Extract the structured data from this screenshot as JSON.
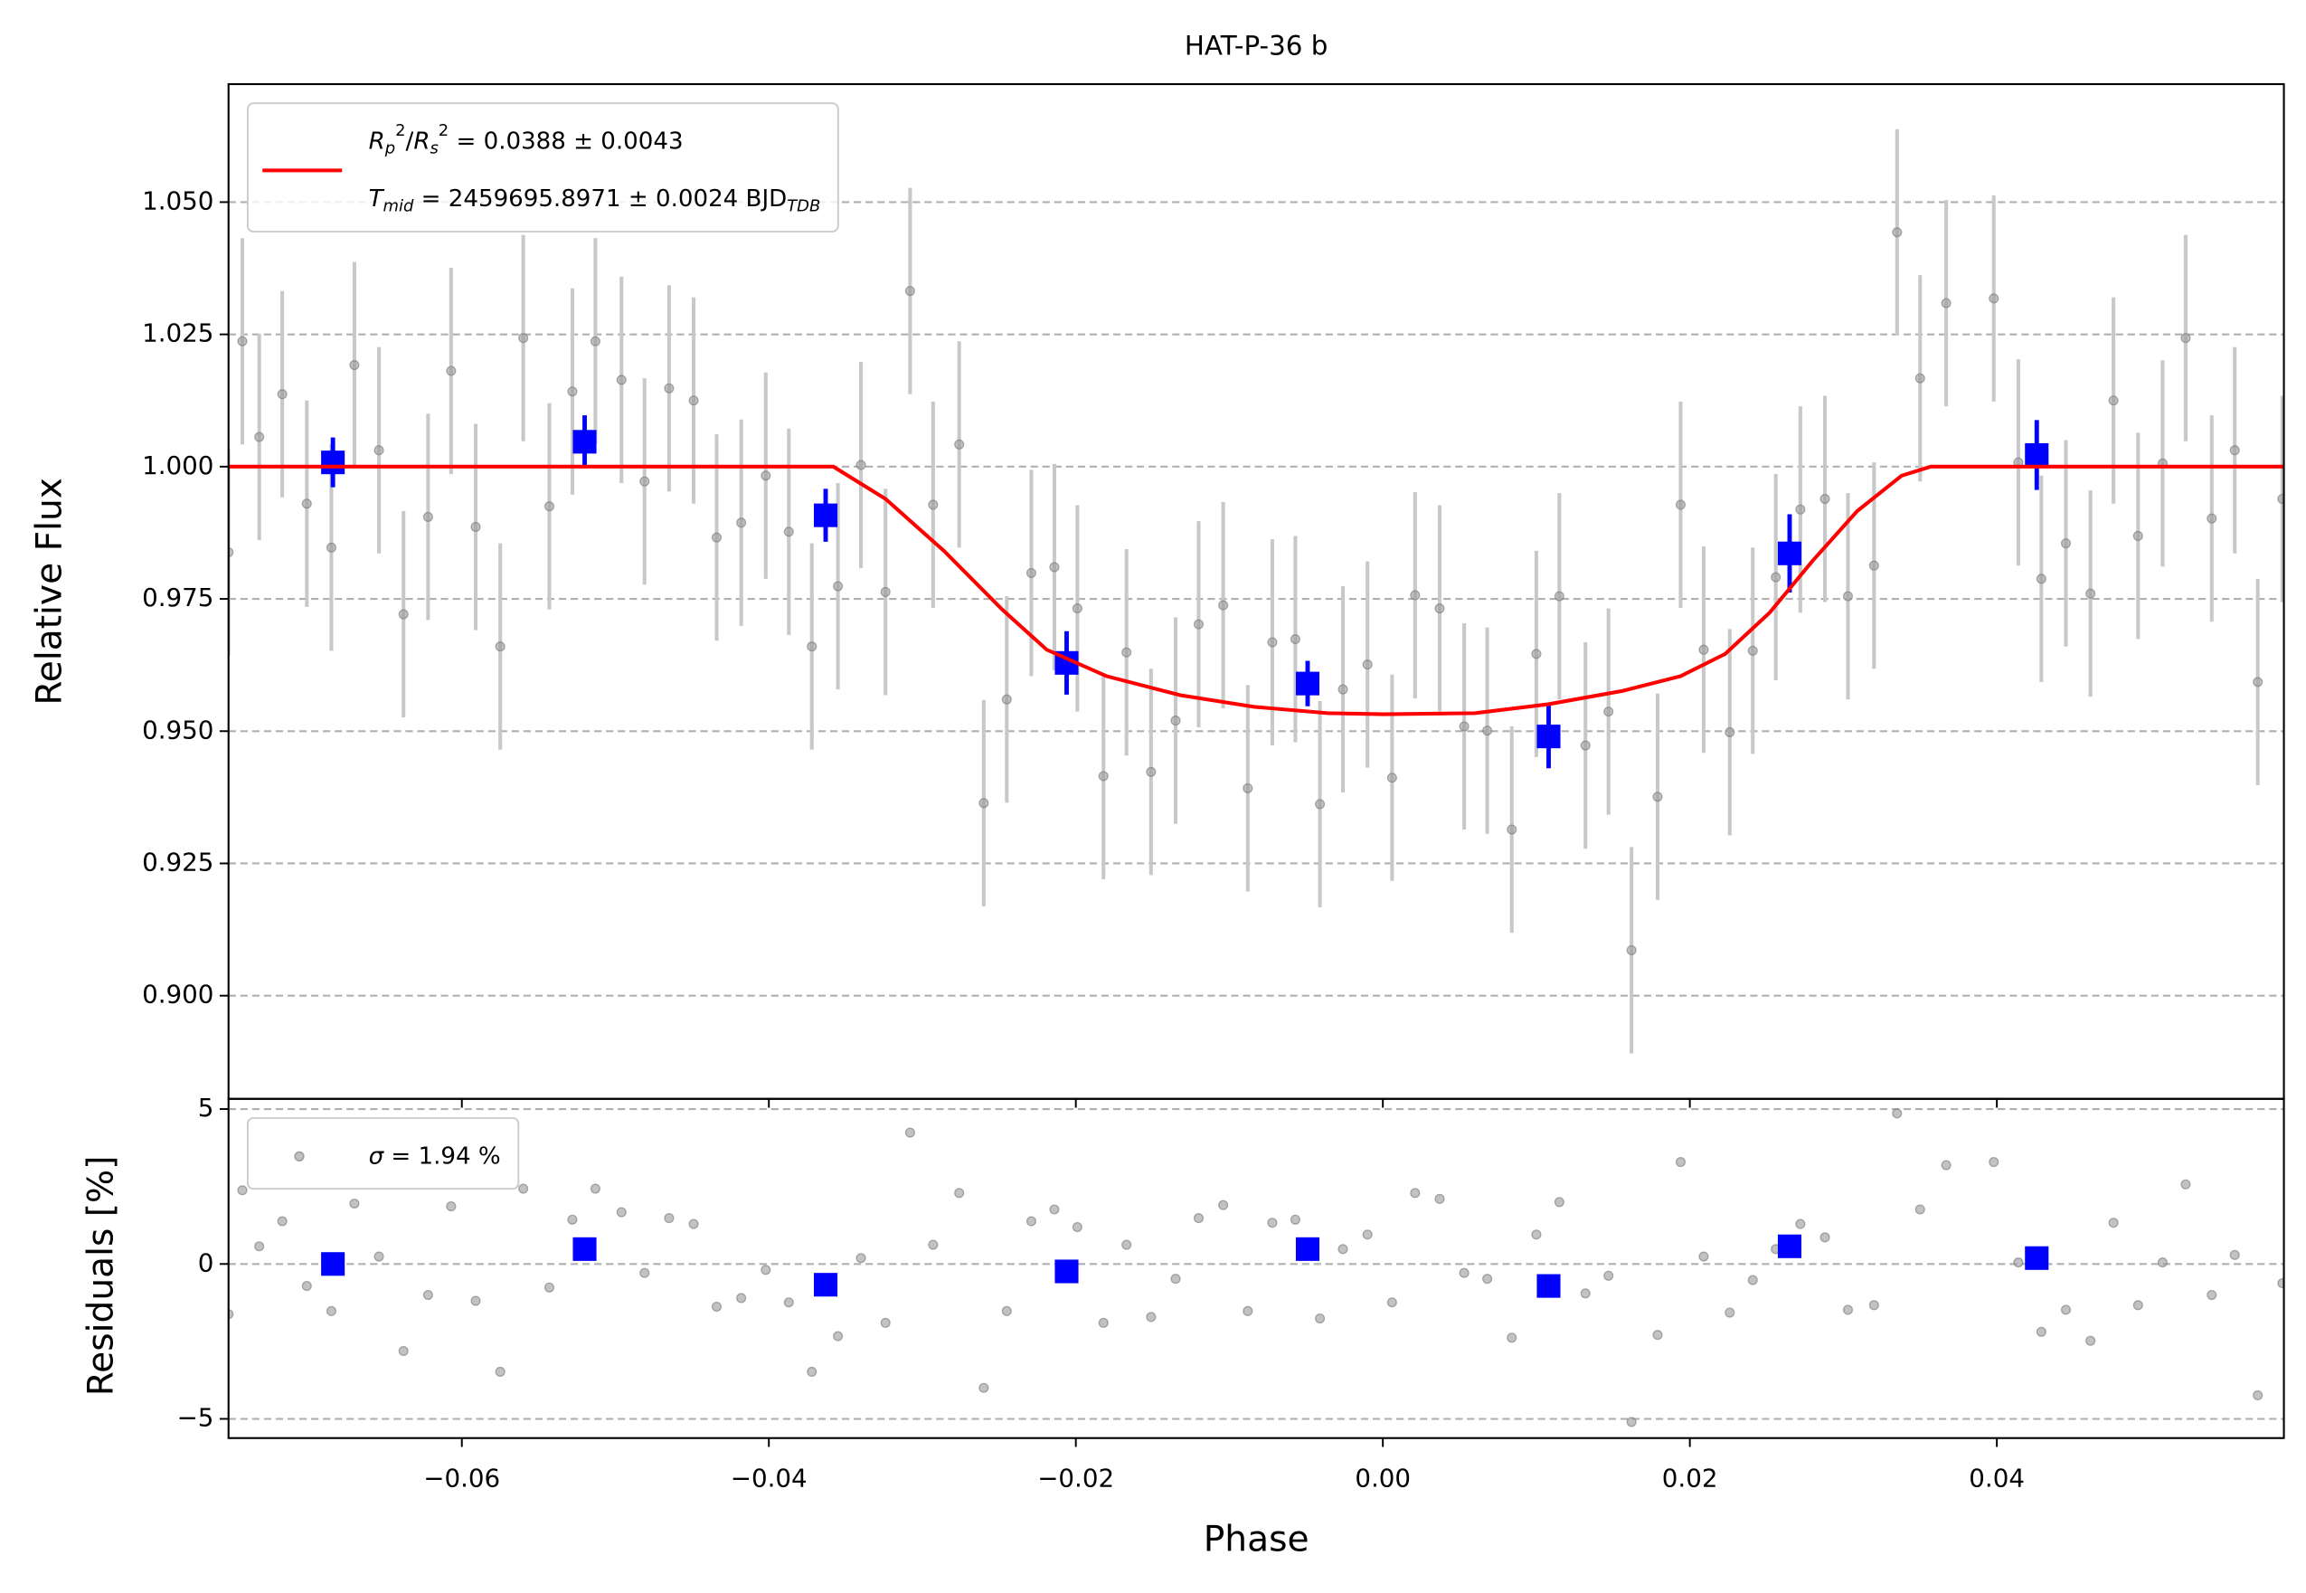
{
  "chart_data": [
    {
      "type": "scatter",
      "title": "HAT-P-36 b",
      "ylabel": "Relative Flux",
      "xlim": [
        -0.0752,
        0.0587
      ],
      "ylim": [
        0.8805,
        1.0723
      ],
      "yticks": [
        {
          "value": 0.9,
          "label": "0.900"
        },
        {
          "value": 0.925,
          "label": "0.925"
        },
        {
          "value": 0.95,
          "label": "0.950"
        },
        {
          "value": 0.975,
          "label": "0.975"
        },
        {
          "value": 1.0,
          "label": "1.000"
        },
        {
          "value": 1.025,
          "label": "1.025"
        },
        {
          "value": 1.05,
          "label": "1.050"
        }
      ],
      "grid": true,
      "legend": "upper left",
      "series": [
        {
          "kind": "points",
          "marker": "o",
          "color": "#999999",
          "errcolor": "#c8c8c8",
          "yerr": 0.0195,
          "x": [
            -0.0752,
            -0.0743,
            -0.0732,
            -0.0717,
            -0.0701,
            -0.0685,
            -0.067,
            -0.0654,
            -0.0638,
            -0.0622,
            -0.0607,
            -0.0591,
            -0.0575,
            -0.056,
            -0.0543,
            -0.0528,
            -0.0513,
            -0.0496,
            -0.0481,
            -0.0465,
            -0.0449,
            -0.0434,
            -0.0418,
            -0.0402,
            -0.0387,
            -0.0372,
            -0.0355,
            -0.034,
            -0.0324,
            -0.0308,
            -0.0293,
            -0.0276,
            -0.026,
            -0.0245,
            -0.0229,
            -0.0214,
            -0.0199,
            -0.0182,
            -0.0167,
            -0.0151,
            -0.0135,
            -0.012,
            -0.0104,
            -0.0088,
            -0.0072,
            -0.0057,
            -0.0041,
            -0.0026,
            -0.001,
            0.0006,
            0.0021,
            0.0037,
            0.0053,
            0.0068,
            0.0084,
            0.01,
            0.0115,
            0.0132,
            0.0147,
            0.0162,
            0.0179,
            0.0194,
            0.0209,
            0.0226,
            0.0241,
            0.0256,
            0.0272,
            0.0288,
            0.0303,
            0.032,
            0.0335,
            0.035,
            0.0367,
            0.0398,
            0.0414,
            0.0429,
            0.0445,
            0.0461,
            0.0476,
            0.0492,
            0.0508,
            0.0523,
            0.054,
            0.0555,
            0.057,
            0.0586
          ],
          "values": [
            0.9838,
            1.0237,
            1.0056,
            1.0137,
            0.993,
            0.9847,
            1.0192,
            1.0031,
            0.9721,
            0.9905,
            1.0181,
            0.9886,
            0.966,
            1.0243,
            0.9925,
            1.0142,
            1.0237,
            1.0164,
            0.9972,
            1.0148,
            1.0125,
            0.9866,
            0.9894,
            0.9983,
            0.9877,
            0.966,
            0.9774,
            1.0003,
            0.9763,
            1.0332,
            0.9928,
            1.0042,
            0.9364,
            0.956,
            0.9799,
            0.981,
            0.9732,
            0.9415,
            0.9649,
            0.9423,
            0.952,
            0.9702,
            0.9738,
            0.9392,
            0.9668,
            0.9674,
            0.9362,
            0.9579,
            0.9626,
            0.9412,
            0.9757,
            0.9732,
            0.9509,
            0.9501,
            0.9314,
            0.9646,
            0.9755,
            0.9473,
            0.9537,
            0.9086,
            0.9376,
            0.9928,
            0.9654,
            0.9498,
            0.9652,
            0.9791,
            0.9919,
            0.9939,
            0.9755,
            0.9813,
            1.0443,
            1.0167,
            1.0309,
            1.0318,
            1.0008,
            0.9788,
            0.9855,
            0.976,
            1.0125,
            0.9869,
            1.0006,
            1.0243,
            0.9902,
            1.0031,
            0.9593,
            0.9939
          ]
        },
        {
          "kind": "points",
          "marker": "s",
          "color": "#0000ff",
          "errcolor": "#0000ff",
          "x": [
            -0.0684,
            -0.052,
            -0.0363,
            -0.0206,
            -0.0049,
            0.0108,
            0.0265,
            0.0426
          ],
          "values": [
            1.0008,
            1.0047,
            0.9908,
            0.9629,
            0.959,
            0.949,
            0.9836,
            1.0022
          ],
          "yerr": [
            0.0047,
            0.005,
            0.005,
            0.006,
            0.0043,
            0.006,
            0.0074,
            0.0066
          ]
        },
        {
          "kind": "line",
          "color": "#ff0000",
          "x": [
            -0.0752,
            -0.0358,
            -0.0324,
            -0.0286,
            -0.0248,
            -0.0219,
            -0.018,
            -0.0132,
            -0.0084,
            -0.0036,
            0,
            0.006,
            0.0108,
            0.0156,
            0.0194,
            0.0223,
            0.0252,
            0.028,
            0.0309,
            0.0338,
            0.0357,
            0.0587
          ],
          "values": [
            1.0,
            1.0,
            0.9939,
            0.9841,
            0.973,
            0.9654,
            0.9604,
            0.9568,
            0.9546,
            0.9534,
            0.9532,
            0.9534,
            0.9551,
            0.9576,
            0.9604,
            0.9646,
            0.9724,
            0.9822,
            0.9916,
            0.9983,
            1.0,
            1.0
          ],
          "label_parts": [
            [
              {
                "text": "R",
                "style": "italic"
              },
              {
                "text": "p",
                "style": "sub-italic"
              },
              {
                "text": "2",
                "style": "sup"
              },
              {
                "text": "/"
              },
              {
                "text": "R",
                "style": "italic"
              },
              {
                "text": "s",
                "style": "sub-italic"
              },
              {
                "text": "2",
                "style": "sup"
              },
              {
                "text": " = 0.0388 ± 0.0043"
              }
            ],
            [
              {
                "text": "T",
                "style": "italic"
              },
              {
                "text": "mid",
                "style": "sub-italic"
              },
              {
                "text": " = 2459695.8971 ± 0.0024 BJD"
              },
              {
                "text": "TDB",
                "style": "sub-italic"
              }
            ]
          ]
        }
      ]
    },
    {
      "type": "scatter",
      "ylabel": "Residuals [%]",
      "xlabel": "Phase",
      "xlim": [
        -0.0752,
        0.0587
      ],
      "ylim": [
        -5.62,
        5.33
      ],
      "xticks": [
        {
          "value": -0.06,
          "label": "−0.06"
        },
        {
          "value": -0.04,
          "label": "−0.04"
        },
        {
          "value": -0.02,
          "label": "−0.02"
        },
        {
          "value": 0,
          "label": "0.00"
        },
        {
          "value": 0.02,
          "label": "0.02"
        },
        {
          "value": 0.04,
          "label": "0.04"
        }
      ],
      "yticks": [
        {
          "value": -5,
          "label": "−5"
        },
        0,
        5
      ],
      "grid": true,
      "legend": "upper left",
      "series": [
        {
          "kind": "points",
          "marker": "o",
          "color": "#999999",
          "x": [
            -0.0752,
            -0.0743,
            -0.0732,
            -0.0717,
            -0.0701,
            -0.0685,
            -0.067,
            -0.0654,
            -0.0638,
            -0.0622,
            -0.0607,
            -0.0591,
            -0.0575,
            -0.056,
            -0.0543,
            -0.0528,
            -0.0513,
            -0.0496,
            -0.0481,
            -0.0465,
            -0.0449,
            -0.0434,
            -0.0418,
            -0.0402,
            -0.0387,
            -0.0372,
            -0.0355,
            -0.034,
            -0.0324,
            -0.0308,
            -0.0293,
            -0.0276,
            -0.026,
            -0.0245,
            -0.0229,
            -0.0214,
            -0.0199,
            -0.0182,
            -0.0167,
            -0.0151,
            -0.0135,
            -0.012,
            -0.0104,
            -0.0088,
            -0.0072,
            -0.0057,
            -0.0041,
            -0.0026,
            -0.001,
            0.0006,
            0.0021,
            0.0037,
            0.0053,
            0.0068,
            0.0084,
            0.01,
            0.0115,
            0.0132,
            0.0147,
            0.0162,
            0.0179,
            0.0194,
            0.0209,
            0.0226,
            0.0241,
            0.0256,
            0.0272,
            0.0288,
            0.0303,
            0.032,
            0.0335,
            0.035,
            0.0367,
            0.0398,
            0.0414,
            0.0429,
            0.0445,
            0.0461,
            0.0476,
            0.0492,
            0.0508,
            0.0523,
            0.054,
            0.0555,
            0.057,
            0.0586
          ],
          "values": [
            -1.62,
            2.38,
            0.57,
            1.38,
            -0.71,
            -1.52,
            1.95,
            0.24,
            -2.81,
            -1,
            1.86,
            -1.19,
            -3.48,
            2.43,
            -0.76,
            1.43,
            2.43,
            1.67,
            -0.29,
            1.48,
            1.29,
            -1.38,
            -1.1,
            -0.19,
            -1.24,
            -3.48,
            -2.33,
            0.19,
            -1.9,
            4.24,
            0.62,
            2.29,
            -4,
            -1.52,
            1.38,
            1.76,
            1.19,
            -1.9,
            0.62,
            -1.71,
            -0.48,
            1.48,
            1.9,
            -1.52,
            1.33,
            1.43,
            -1.76,
            0.48,
            0.95,
            -1.24,
            2.29,
            2.1,
            -0.29,
            -0.48,
            -2.38,
            0.95,
            2,
            -0.95,
            -0.38,
            -5.1,
            -2.29,
            3.29,
            0.24,
            -1.57,
            -0.52,
            0.48,
            1.29,
            0.86,
            -1.48,
            -1.33,
            4.86,
            1.76,
            3.19,
            3.29,
            0.05,
            -2.19,
            -1.48,
            -2.48,
            1.33,
            -1.33,
            0.05,
            2.57,
            -1,
            0.29,
            -4.24,
            -0.62
          ],
          "label_parts": [
            [
              {
                "text": "σ",
                "style": "italic"
              },
              {
                "text": " = 1.94 %"
              }
            ]
          ]
        },
        {
          "kind": "points",
          "marker": "s",
          "color": "#0000ff",
          "x": [
            -0.0684,
            -0.052,
            -0.0363,
            -0.0206,
            -0.0049,
            0.0108,
            0.0265,
            0.0426
          ],
          "values": [
            0,
            0.48,
            -0.67,
            -0.24,
            0.48,
            -0.71,
            0.57,
            0.19
          ]
        }
      ]
    }
  ]
}
